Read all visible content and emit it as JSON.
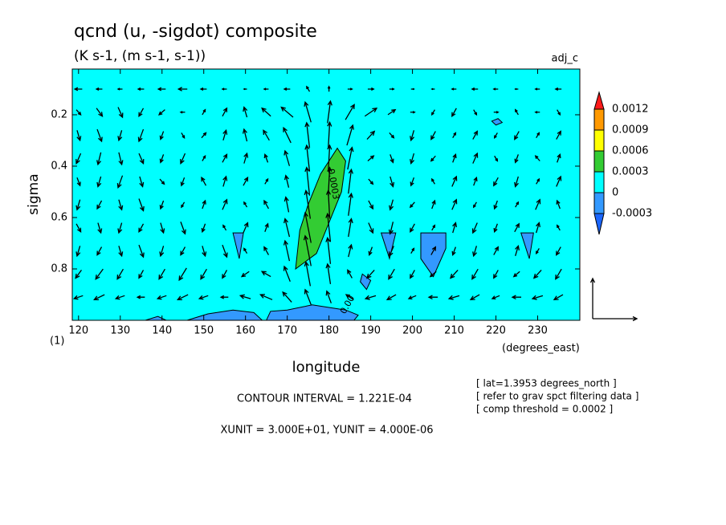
{
  "chart_data": {
    "type": "contour-vector",
    "title": "qcnd (u, -sigdot) composite",
    "subtitle": "(K s-1, (m s-1, s-1))",
    "tag": "adj_c",
    "xlabel": "longitude",
    "xunit_label": "(degrees_east)",
    "ylabel": "sigma",
    "yunit_label": "(1)",
    "notes": [
      "[ lat=1.3953 degrees_north ]",
      "[ refer to grav spct filtering data ]",
      "[ comp threshold = 0.0002 ]"
    ],
    "contour_interval": "CONTOUR INTERVAL = 1.221E-04",
    "vector_units": "XUNIT = 3.000E+01, YUNIT = 4.000E-06",
    "xunit": 30,
    "yunit": 4e-06,
    "xlim": [
      118.5,
      240.1
    ],
    "ylim": [
      1.0,
      0.022
    ],
    "xticks": [
      120,
      130,
      140,
      150,
      160,
      170,
      180,
      190,
      200,
      210,
      220,
      230
    ],
    "yticks": [
      0.2,
      0.4,
      0.6,
      0.8
    ],
    "colorbar": {
      "levels": [
        -0.0003,
        0,
        0.0003,
        0.0006,
        0.0009,
        0.0012
      ],
      "colors": [
        "#1a66ff",
        "#3399ff",
        "#00ffff",
        "#33cc33",
        "#ffff00",
        "#ff9900",
        "#ff1a1a"
      ]
    },
    "field_color": "#00ffff",
    "regions": [
      {
        "color": "#33cc33",
        "points": [
          [
            172,
            0.8
          ],
          [
            173,
            0.65
          ],
          [
            175,
            0.55
          ],
          [
            178,
            0.43
          ],
          [
            182,
            0.33
          ],
          [
            184,
            0.38
          ],
          [
            183,
            0.5
          ],
          [
            180,
            0.62
          ],
          [
            177,
            0.74
          ]
        ]
      },
      {
        "color": "#3399ff",
        "points": [
          [
            157,
            0.66
          ],
          [
            159.5,
            0.66
          ],
          [
            158.5,
            0.76
          ]
        ]
      },
      {
        "color": "#3399ff",
        "points": [
          [
            192.5,
            0.66
          ],
          [
            196,
            0.66
          ],
          [
            194.5,
            0.76
          ]
        ]
      },
      {
        "color": "#3399ff",
        "points": [
          [
            202,
            0.66
          ],
          [
            208,
            0.66
          ],
          [
            208,
            0.72
          ],
          [
            205,
            0.83
          ],
          [
            202,
            0.76
          ]
        ]
      },
      {
        "color": "#3399ff",
        "points": [
          [
            226,
            0.66
          ],
          [
            229,
            0.66
          ],
          [
            228,
            0.76
          ]
        ]
      },
      {
        "color": "#3399ff",
        "points": [
          [
            188,
            0.82
          ],
          [
            190,
            0.845
          ],
          [
            189,
            0.88
          ],
          [
            187.5,
            0.85
          ]
        ]
      },
      {
        "color": "#3399ff",
        "points": [
          [
            219,
            0.225
          ],
          [
            220.5,
            0.215
          ],
          [
            221.5,
            0.23
          ],
          [
            220,
            0.24
          ]
        ]
      },
      {
        "color": "#3399ff",
        "points": [
          [
            136,
            1.0
          ],
          [
            139,
            0.985
          ],
          [
            141,
            1.0
          ]
        ]
      },
      {
        "color": "#3399ff",
        "points": [
          [
            146,
            1.0
          ],
          [
            151,
            0.975
          ],
          [
            157,
            0.96
          ],
          [
            162,
            0.97
          ],
          [
            164,
            1.0
          ]
        ]
      },
      {
        "color": "#3399ff",
        "points": [
          [
            165,
            1.0
          ],
          [
            166,
            0.965
          ],
          [
            170,
            0.96
          ],
          [
            173,
            0.95
          ],
          [
            176,
            0.94
          ],
          [
            180,
            0.95
          ],
          [
            184,
            0.96
          ],
          [
            187,
            0.98
          ],
          [
            186,
            1.0
          ]
        ]
      }
    ],
    "annotations": [
      {
        "text": "0.0003",
        "x": 181,
        "y": 0.47,
        "angle": 80
      },
      {
        "text": "0.00",
        "x": 184.5,
        "y": 0.94,
        "angle": -60
      }
    ],
    "vectors": {
      "x": [
        120,
        125,
        130,
        135,
        140,
        145,
        150,
        155,
        160,
        165,
        170,
        175,
        180,
        185,
        190,
        195,
        200,
        205,
        210,
        215,
        220,
        225,
        230,
        235
      ],
      "y": [
        0.1,
        0.19,
        0.28,
        0.37,
        0.46,
        0.55,
        0.64,
        0.73,
        0.82,
        0.91
      ],
      "u": [
        [
          -5,
          -4,
          -3,
          -4,
          -5,
          -6,
          -4,
          -3,
          -2,
          -3,
          -4,
          -2,
          0,
          3,
          4,
          3,
          2,
          -2,
          -3,
          -4,
          -3,
          -2,
          -3,
          -4
        ],
        [
          3,
          4,
          3,
          -3,
          -4,
          -3,
          2,
          3,
          -2,
          -6,
          -8,
          -4,
          2,
          6,
          8,
          5,
          3,
          -2,
          -3,
          2,
          3,
          -2,
          -3,
          2
        ],
        [
          2,
          3,
          -2,
          -3,
          -2,
          2,
          3,
          2,
          -2,
          -4,
          -5,
          -2,
          1,
          4,
          5,
          3,
          -2,
          -3,
          2,
          3,
          -2,
          -3,
          2,
          3
        ],
        [
          -3,
          -2,
          2,
          3,
          -2,
          -3,
          2,
          3,
          2,
          -2,
          -3,
          -2,
          1,
          3,
          4,
          2,
          -2,
          -3,
          2,
          3,
          2,
          -2,
          -3,
          2
        ],
        [
          2,
          -2,
          -3,
          2,
          3,
          -2,
          -3,
          2,
          3,
          2,
          -2,
          -2,
          1,
          2,
          3,
          2,
          -2,
          -2,
          3,
          2,
          -3,
          -2,
          2,
          3
        ],
        [
          -2,
          -3,
          2,
          3,
          -2,
          -2,
          2,
          3,
          -2,
          -3,
          -2,
          -3,
          -1,
          2,
          3,
          -2,
          -3,
          2,
          3,
          -2,
          -2,
          2,
          3,
          -2
        ],
        [
          3,
          2,
          -2,
          -3,
          2,
          3,
          -2,
          -2,
          3,
          2,
          -3,
          -4,
          -2,
          2,
          3,
          -2,
          -3,
          2,
          2,
          -3,
          -2,
          3,
          2,
          -2
        ],
        [
          -2,
          -3,
          2,
          3,
          -2,
          -3,
          2,
          3,
          -2,
          -3,
          -3,
          -4,
          -2,
          2,
          -2,
          -3,
          2,
          3,
          -2,
          -2,
          3,
          2,
          -2,
          -3
        ],
        [
          -4,
          -5,
          -4,
          -3,
          -4,
          -5,
          -4,
          -3,
          -5,
          -6,
          -4,
          -3,
          -2,
          -3,
          -5,
          -4,
          -3,
          -4,
          -5,
          -4,
          -3,
          -4,
          -5,
          -4
        ],
        [
          -6,
          -7,
          -6,
          -5,
          -6,
          -7,
          -6,
          -5,
          -7,
          -8,
          -6,
          -4,
          -3,
          -5,
          -7,
          -6,
          -5,
          -6,
          -7,
          -6,
          -5,
          -6,
          -7,
          -6
        ]
      ],
      "w": [
        [
          0,
          0,
          0,
          0,
          0,
          0,
          0,
          0,
          0,
          0,
          0,
          5e-07,
          5e-07,
          0,
          0,
          0,
          0,
          0,
          0,
          0,
          0,
          0,
          0,
          0
        ],
        [
          -5e-07,
          -8e-07,
          -1e-06,
          -8e-07,
          -5e-07,
          0,
          5e-07,
          8e-07,
          1e-06,
          8e-07,
          1e-06,
          2e-06,
          2.2e-06,
          1.5e-06,
          8e-07,
          5e-07,
          0,
          -5e-07,
          -8e-07,
          -5e-07,
          0,
          5e-07,
          0,
          -5e-07
        ],
        [
          -1e-06,
          -1.2e-06,
          -1e-06,
          -1.2e-06,
          -8e-07,
          -5e-07,
          5e-07,
          1e-06,
          1.2e-06,
          1e-06,
          1.5e-06,
          2.5e-06,
          2.6e-06,
          2e-06,
          8e-07,
          -5e-07,
          -1e-06,
          -8e-07,
          5e-07,
          8e-07,
          -5e-07,
          -8e-07,
          5e-07,
          8e-07
        ],
        [
          -1e-06,
          -1.2e-06,
          -1.2e-06,
          -1e-06,
          -8e-07,
          -1e-06,
          5e-07,
          8e-07,
          1e-06,
          8e-07,
          1.5e-06,
          2.6e-06,
          2.6e-06,
          2.2e-06,
          5e-07,
          -8e-07,
          -1e-06,
          -5e-07,
          8e-07,
          1e-06,
          -5e-07,
          -8e-07,
          5e-07,
          8e-07
        ],
        [
          -8e-07,
          -1e-06,
          -1.2e-06,
          -1e-06,
          -5e-07,
          -8e-07,
          8e-07,
          1e-06,
          8e-07,
          5e-07,
          1.2e-06,
          2.8e-06,
          2.8e-06,
          2.4e-06,
          -5e-07,
          -1e-06,
          -8e-07,
          5e-07,
          1e-06,
          8e-07,
          -8e-07,
          -1e-06,
          5e-07,
          1e-06
        ],
        [
          -1e-06,
          -8e-07,
          -1e-06,
          -1.2e-06,
          -8e-07,
          -5e-07,
          8e-07,
          1e-06,
          5e-07,
          8e-07,
          1.5e-06,
          2.8e-06,
          2.8e-06,
          2.2e-06,
          -8e-07,
          -1e-06,
          -5e-07,
          8e-07,
          1e-06,
          -5e-07,
          -8e-07,
          5e-07,
          1e-06,
          8e-07
        ],
        [
          -8e-07,
          -1e-06,
          -1e-06,
          -8e-07,
          -1e-06,
          -1.2e-06,
          -8e-07,
          5e-07,
          1e-06,
          8e-07,
          1.8e-06,
          3e-06,
          2.8e-06,
          1.8e-06,
          -1e-06,
          -1.2e-06,
          -8e-07,
          5e-07,
          1e-06,
          -1e-06,
          -8e-07,
          8e-07,
          1e-06,
          5e-07
        ],
        [
          -1e-06,
          -8e-07,
          -1e-06,
          -1.2e-06,
          -1e-06,
          -8e-07,
          -1e-06,
          -1.2e-06,
          5e-07,
          8e-07,
          2e-06,
          3e-06,
          2.6e-06,
          1.2e-06,
          -8e-07,
          -1e-06,
          5e-07,
          8e-07,
          -8e-07,
          -1e-06,
          8e-07,
          1e-06,
          -5e-07,
          -8e-07
        ],
        [
          -8e-07,
          -1e-06,
          -1e-06,
          -8e-07,
          -1e-06,
          -1.2e-06,
          -1e-06,
          -8e-07,
          -5e-07,
          5e-07,
          1.5e-06,
          2.4e-06,
          2e-06,
          8e-07,
          -8e-07,
          -1e-06,
          -8e-07,
          -5e-07,
          -8e-07,
          -1e-06,
          -8e-07,
          -5e-07,
          -8e-07,
          -1e-06
        ],
        [
          -3e-07,
          -5e-07,
          -3e-07,
          0,
          -3e-07,
          -5e-07,
          -3e-07,
          0,
          3e-07,
          5e-07,
          1e-06,
          1.5e-06,
          1.2e-06,
          5e-07,
          -3e-07,
          -5e-07,
          -3e-07,
          0,
          -3e-07,
          -5e-07,
          -3e-07,
          0,
          -3e-07,
          -5e-07
        ]
      ]
    }
  }
}
